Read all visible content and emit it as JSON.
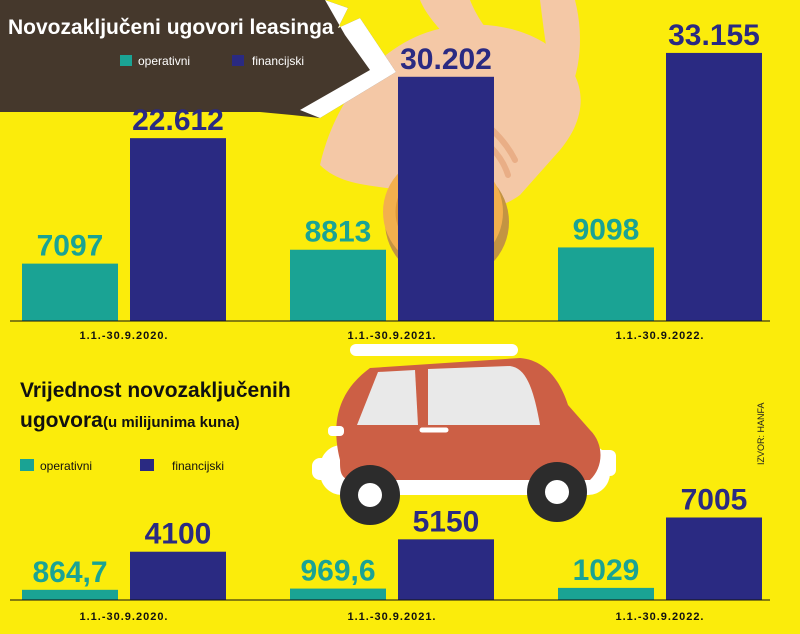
{
  "colors": {
    "background": "#fbec0b",
    "operativni": "#1aa394",
    "financijski": "#2a2a82"
  },
  "chart_data": [
    {
      "type": "bar",
      "title": "Novozaključeni ugovori leasinga",
      "categories": [
        "1.1.-30.9.2020.",
        "1.1.-30.9.2021.",
        "1.1.-30.9.2022."
      ],
      "series": [
        {
          "name": "operativni",
          "values": [
            7097,
            8813,
            9098
          ],
          "labels": [
            "7097",
            "8813",
            "9098"
          ]
        },
        {
          "name": "financijski",
          "values": [
            22612,
            30202,
            33155
          ],
          "labels": [
            "22.612",
            "30.202",
            "33.155"
          ]
        }
      ],
      "ylim": [
        0,
        35000
      ],
      "legend": "top-right"
    },
    {
      "type": "bar",
      "title": "Vrijednost novozaključenih ugovora",
      "subtitle": "(u milijunima kuna)",
      "categories": [
        "1.1.-30.9.2020.",
        "1.1.-30.9.2021.",
        "1.1.-30.9.2022."
      ],
      "series": [
        {
          "name": "operativni",
          "values": [
            864.7,
            969.6,
            1029
          ],
          "labels": [
            "864,7",
            "969,6",
            "1029"
          ]
        },
        {
          "name": "financijski",
          "values": [
            4100,
            5150,
            7005
          ],
          "labels": [
            "4100",
            "5150",
            "7005"
          ]
        }
      ],
      "ylim": [
        0,
        9000
      ],
      "legend": "top-left"
    }
  ],
  "source": "IZVOR: HANFA"
}
